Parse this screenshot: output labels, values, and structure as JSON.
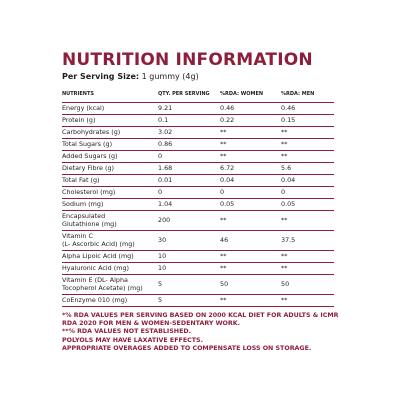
{
  "title": "NUTRITION INFORMATION",
  "serving": {
    "label": "Per Serving Size:",
    "value": " 1 gummy (4g)"
  },
  "headers": [
    "NUTRIENTS",
    "QTY. PER SERVING",
    "%RDA: WOMEN",
    "%RDA: MEN"
  ],
  "rows": [
    {
      "name": "Energy (kcal)",
      "qty": "9.21",
      "women": "0.46",
      "men": "0.46"
    },
    {
      "name": "Protein (g)",
      "qty": "0.1",
      "women": "0.22",
      "men": "0.15"
    },
    {
      "name": "Carbohydrates (g)",
      "qty": "3.02",
      "women": "**",
      "men": "**"
    },
    {
      "name": "Total Sugars (g)",
      "qty": "0.86",
      "women": "**",
      "men": "**"
    },
    {
      "name": "Added Sugars (g)",
      "qty": "0",
      "women": "**",
      "men": "**"
    },
    {
      "name": "Dietary Fibre (g)",
      "qty": "1.68",
      "women": "6.72",
      "men": "5.6"
    },
    {
      "name": "Total Fat (g)",
      "qty": "0.01",
      "women": "0.04",
      "men": "0.04"
    },
    {
      "name": "Cholesterol (mg)",
      "qty": "0",
      "women": "0",
      "men": "0"
    },
    {
      "name": "Sodium (mg)",
      "qty": "1.04",
      "women": "0.05",
      "men": "0.05"
    },
    {
      "name": "Encapsulated",
      "name2": "Glutathione (mg)",
      "qty": "200",
      "women": "**",
      "men": "**"
    },
    {
      "name": "Vitamin C",
      "name2": "(L- Ascorbic Acid) (mg)",
      "qty": "30",
      "women": "46",
      "men": "37.5"
    },
    {
      "name": "Alpha Lipoic Acid (mg)",
      "qty": "10",
      "women": "**",
      "men": "**"
    },
    {
      "name": "Hyaluronic Acid (mg)",
      "qty": "10",
      "women": "**",
      "men": "**"
    },
    {
      "name": "Vitamin E (DL- Alpha",
      "name2": "Tocopherol Acetate) (mg)",
      "qty": "5",
      "women": "50",
      "men": "50"
    },
    {
      "name": "CoEnzyme 010 (mg)",
      "qty": "5",
      "women": "**",
      "men": "**"
    }
  ],
  "notes": [
    "*% RDA VALUES PER SERVING BASED ON 2000 KCAL DIET FOR ADULTS & ICMR RDA 2020 FOR MEN & WOMEN-SEDENTARY WORK.",
    "**% RDA VALUES NOT ESTABLISHED.",
    "POLYOLS MAY HAVE LAXATIVE EFFECTS.",
    "APPROPRIATE OVERAGES ADDED TO COMPENSATE LOSS ON STORAGE."
  ],
  "colors": {
    "accent": "#8e1f3c",
    "text": "#1f1f1f"
  }
}
